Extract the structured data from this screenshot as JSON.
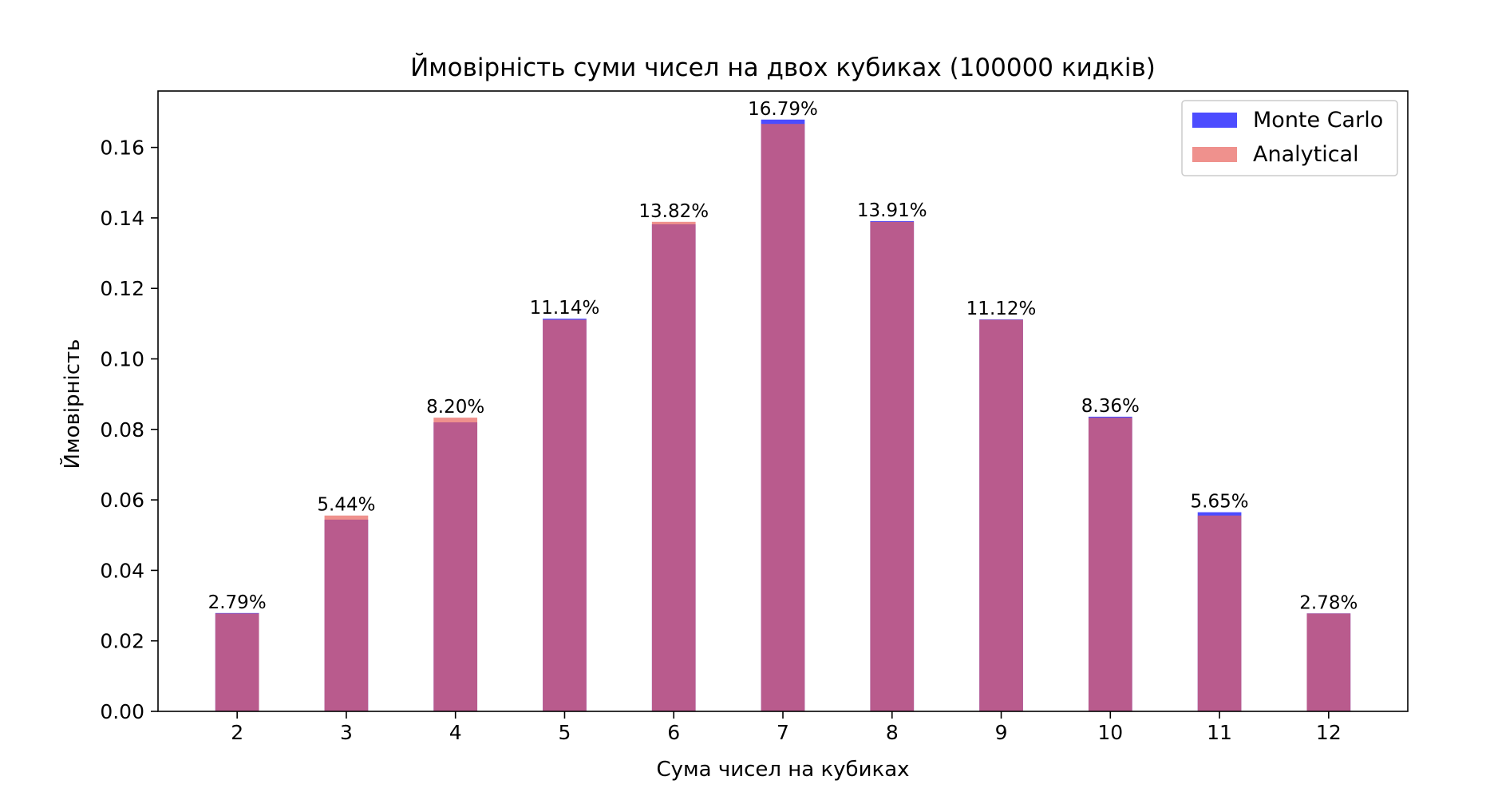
{
  "chart_data": {
    "type": "bar",
    "title": "Ймовірність суми чисел на двох кубиках (100000 кидків)",
    "xlabel": "Сума чисел на кубиках",
    "ylabel": "Ймовірність",
    "categories": [
      "2",
      "3",
      "4",
      "5",
      "6",
      "7",
      "8",
      "9",
      "10",
      "11",
      "12"
    ],
    "series": [
      {
        "name": "Monte Carlo",
        "color": "#0000ff",
        "alpha": 0.7,
        "values": [
          0.0279,
          0.0544,
          0.082,
          0.1114,
          0.1382,
          0.1679,
          0.1391,
          0.1112,
          0.0836,
          0.0565,
          0.0278
        ]
      },
      {
        "name": "Analytical",
        "color": "#e8625c",
        "alpha": 0.7,
        "values": [
          0.02778,
          0.05556,
          0.08333,
          0.11111,
          0.13889,
          0.16667,
          0.13889,
          0.11111,
          0.08333,
          0.05556,
          0.02778
        ]
      }
    ],
    "data_labels": [
      "2.79%",
      "5.44%",
      "8.20%",
      "11.14%",
      "13.82%",
      "16.79%",
      "13.91%",
      "11.12%",
      "8.36%",
      "5.65%",
      "2.78%"
    ],
    "ylim": [
      0,
      0.176
    ],
    "yticks": [
      "0.00",
      "0.02",
      "0.04",
      "0.06",
      "0.08",
      "0.10",
      "0.12",
      "0.14",
      "0.16"
    ],
    "grid": false,
    "legend_position": "top-right"
  }
}
